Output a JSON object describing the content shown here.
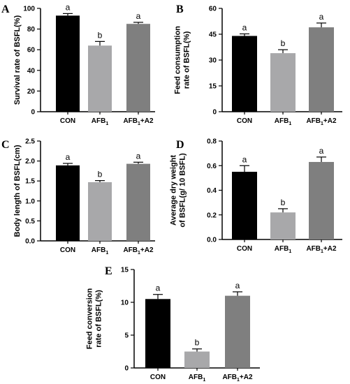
{
  "chart_data": [
    {
      "type": "bar",
      "panel": "A",
      "categories": [
        "CON",
        "AFB1",
        "AFB1+A2"
      ],
      "ylabel": "Survival rate of BSFL(%)",
      "ylim": [
        0,
        100
      ],
      "yticks": [
        0,
        20,
        40,
        60,
        80,
        100
      ],
      "values": [
        93,
        64,
        85
      ],
      "errors": [
        2,
        4,
        1.5
      ],
      "significance": [
        "a",
        "b",
        "a"
      ],
      "colors": [
        "#000000",
        "#a8a8aa",
        "#7f7f7f"
      ]
    },
    {
      "type": "bar",
      "panel": "B",
      "categories": [
        "CON",
        "AFB1",
        "AFB1+A2"
      ],
      "ylabel": "Feed consumption rate of BSFL(%)",
      "ylim": [
        0,
        60
      ],
      "yticks": [
        0,
        15,
        30,
        45,
        60
      ],
      "values": [
        44,
        34,
        49
      ],
      "errors": [
        1.2,
        2,
        2.5
      ],
      "significance": [
        "a",
        "b",
        "a"
      ],
      "colors": [
        "#000000",
        "#a8a8aa",
        "#7f7f7f"
      ]
    },
    {
      "type": "bar",
      "panel": "C",
      "categories": [
        "CON",
        "AFB1",
        "AFB1+A2"
      ],
      "ylabel": "Body length of BSFL(cm)",
      "ylim": [
        0,
        2.5
      ],
      "yticks": [
        0.0,
        0.5,
        1.0,
        1.5,
        2.0,
        2.5
      ],
      "values": [
        1.89,
        1.47,
        1.93
      ],
      "errors": [
        0.05,
        0.04,
        0.04
      ],
      "significance": [
        "a",
        "b",
        "a"
      ],
      "colors": [
        "#000000",
        "#a8a8aa",
        "#7f7f7f"
      ]
    },
    {
      "type": "bar",
      "panel": "D",
      "categories": [
        "CON",
        "AFB1",
        "AFB1+A2"
      ],
      "ylabel": "Average dry weight of BSFL(g/ 10 BSFL)",
      "ylim": [
        0,
        0.8
      ],
      "yticks": [
        0.0,
        0.2,
        0.4,
        0.6,
        0.8
      ],
      "values": [
        0.55,
        0.22,
        0.63
      ],
      "errors": [
        0.05,
        0.03,
        0.04
      ],
      "significance": [
        "a",
        "b",
        "a"
      ],
      "colors": [
        "#000000",
        "#a8a8aa",
        "#7f7f7f"
      ]
    },
    {
      "type": "bar",
      "panel": "E",
      "categories": [
        "CON",
        "AFB1",
        "AFB1+A2"
      ],
      "ylabel": "Feed conversion rate of BSFL(%)",
      "ylim": [
        0,
        15
      ],
      "yticks": [
        0,
        5,
        10,
        15
      ],
      "values": [
        10.5,
        2.5,
        11.0
      ],
      "errors": [
        0.7,
        0.4,
        0.6
      ],
      "significance": [
        "a",
        "b",
        "a"
      ],
      "colors": [
        "#000000",
        "#a8a8aa",
        "#7f7f7f"
      ]
    }
  ]
}
